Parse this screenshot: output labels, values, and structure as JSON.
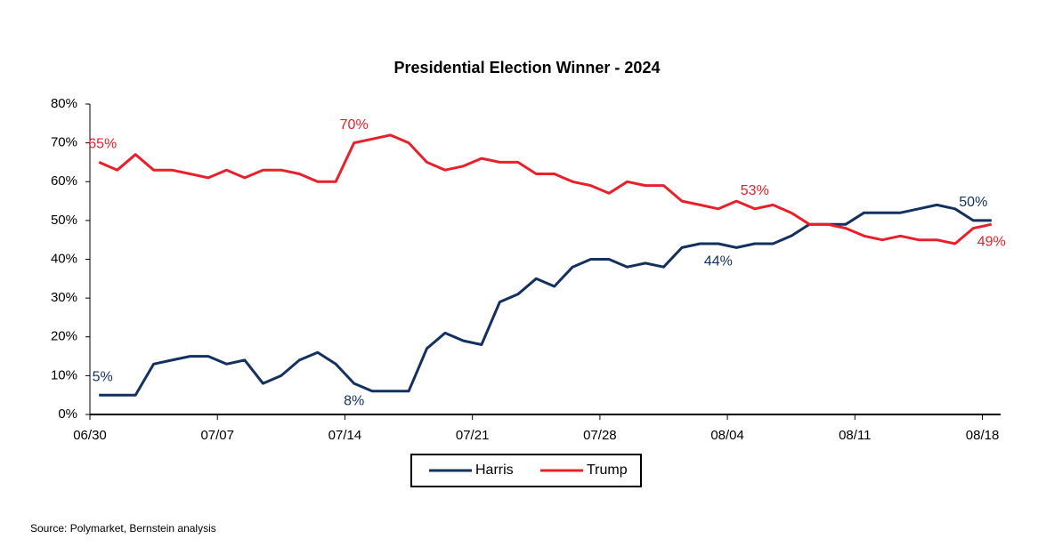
{
  "chart_data": {
    "type": "line",
    "title": "Presidential Election Winner - 2024",
    "categories": [
      "06/30",
      null,
      null,
      null,
      null,
      null,
      null,
      "07/07",
      null,
      null,
      null,
      null,
      null,
      null,
      "07/14",
      null,
      null,
      null,
      null,
      null,
      null,
      "07/21",
      null,
      null,
      null,
      null,
      null,
      null,
      "07/28",
      null,
      null,
      null,
      null,
      null,
      null,
      "08/04",
      null,
      null,
      null,
      null,
      null,
      null,
      "08/11",
      null,
      null,
      null,
      null,
      null,
      null,
      "08/18"
    ],
    "series": [
      {
        "name": "Harris",
        "color": "#14305e",
        "values": [
          5,
          5,
          5,
          13,
          14,
          15,
          15,
          13,
          14,
          8,
          10,
          14,
          16,
          13,
          8,
          6,
          6,
          6,
          17,
          21,
          19,
          18,
          29,
          31,
          35,
          33,
          38,
          40,
          40,
          38,
          39,
          38,
          43,
          44,
          44,
          43,
          44,
          44,
          46,
          49,
          49,
          49,
          52,
          52,
          52,
          53,
          54,
          53,
          50,
          50
        ],
        "value_labels": [
          "5%",
          null,
          null,
          null,
          null,
          null,
          null,
          null,
          null,
          null,
          null,
          null,
          null,
          null,
          "8%",
          null,
          null,
          null,
          null,
          null,
          null,
          null,
          null,
          null,
          null,
          null,
          null,
          null,
          null,
          null,
          null,
          null,
          null,
          null,
          "44%",
          null,
          null,
          null,
          null,
          null,
          null,
          null,
          null,
          null,
          null,
          null,
          null,
          null,
          "50%",
          null
        ]
      },
      {
        "name": "Trump",
        "color": "#e8202a",
        "values": [
          65,
          63,
          67,
          63,
          63,
          62,
          61,
          63,
          61,
          63,
          63,
          62,
          60,
          60,
          70,
          71,
          72,
          70,
          65,
          63,
          64,
          66,
          65,
          65,
          62,
          62,
          60,
          59,
          57,
          60,
          59,
          59,
          55,
          54,
          53,
          55,
          53,
          54,
          52,
          49,
          49,
          48,
          46,
          45,
          46,
          45,
          45,
          44,
          48,
          49
        ],
        "value_labels": [
          "65%",
          null,
          null,
          null,
          null,
          null,
          null,
          null,
          null,
          null,
          null,
          null,
          null,
          null,
          "70%",
          null,
          null,
          null,
          null,
          null,
          null,
          null,
          null,
          null,
          null,
          null,
          null,
          null,
          null,
          null,
          null,
          null,
          null,
          null,
          null,
          null,
          "53%",
          null,
          null,
          null,
          null,
          null,
          null,
          null,
          null,
          null,
          null,
          null,
          null,
          "49%"
        ]
      }
    ],
    "ylim": [
      0,
      80
    ],
    "yticks": [
      {
        "value": 0,
        "label": "0%"
      },
      {
        "value": 10,
        "label": "10%"
      },
      {
        "value": 20,
        "label": "20%"
      },
      {
        "value": 30,
        "label": "30%"
      },
      {
        "value": 40,
        "label": "40%"
      },
      {
        "value": 50,
        "label": "50%"
      },
      {
        "value": 60,
        "label": "60%"
      },
      {
        "value": 70,
        "label": "70%"
      },
      {
        "value": 80,
        "label": "80%"
      }
    ],
    "grid": false,
    "legend": "bottom",
    "source": "Source: Polymarket, Bernstein analysis"
  }
}
